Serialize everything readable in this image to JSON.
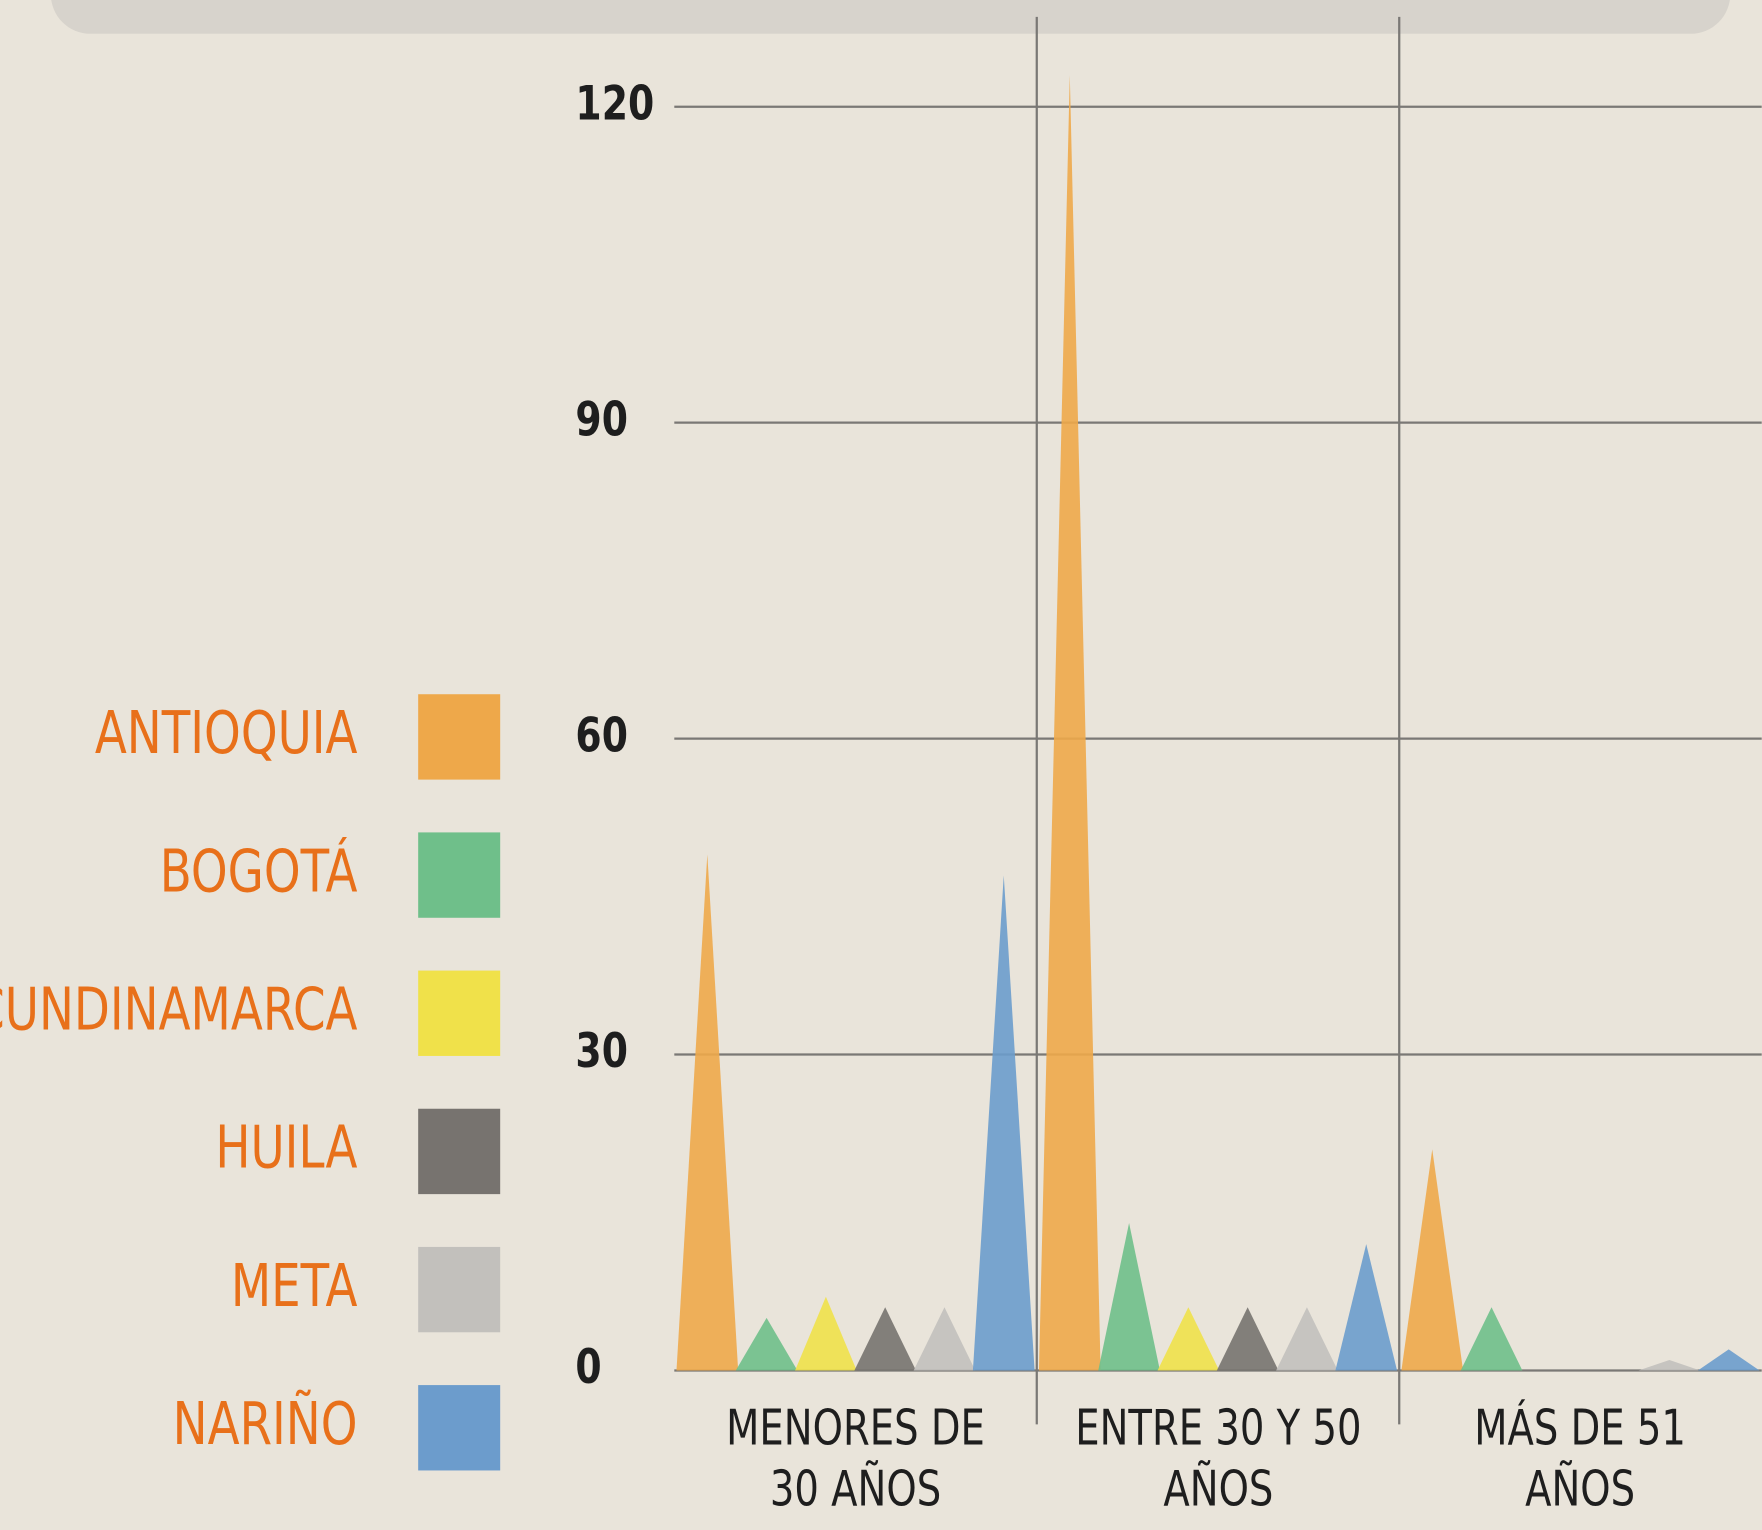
{
  "chart_data": {
    "type": "bar",
    "categories": [
      "MENORES DE 30 AÑOS",
      "ENTRE 30 Y 50 AÑOS",
      "MÁS DE 51 AÑOS"
    ],
    "series": [
      {
        "name": "ANTIOQUIA",
        "color": "#eea84a",
        "values": [
          49,
          123,
          21
        ]
      },
      {
        "name": "BOGOTÁ",
        "color": "#6fbf8a",
        "values": [
          5,
          14,
          6
        ]
      },
      {
        "name": "CUNDINAMARCA",
        "color": "#f0e14a",
        "values": [
          7,
          6,
          0
        ]
      },
      {
        "name": "HUILA",
        "color": "#77736f",
        "values": [
          6,
          6,
          0
        ]
      },
      {
        "name": "META",
        "color": "#c2c0bc",
        "values": [
          6,
          6,
          1
        ]
      },
      {
        "name": "NARIÑO",
        "color": "#6c9ccc",
        "values": [
          47,
          12,
          2
        ]
      }
    ],
    "ylim": [
      0,
      120
    ],
    "yticks": [
      0,
      30,
      60,
      90,
      120
    ],
    "grid": true,
    "legend": "left"
  }
}
